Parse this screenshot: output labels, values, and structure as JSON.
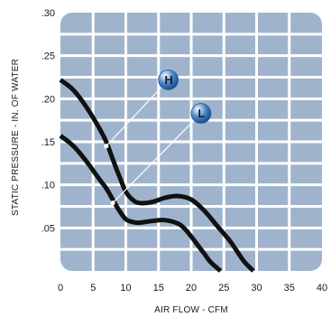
{
  "chart_data": {
    "type": "line",
    "title": "",
    "xlabel": "AIR FLOW - CFM",
    "ylabel": "STATIC PRESSURE - IN. OF WATER",
    "xlim": [
      0,
      40
    ],
    "ylim": [
      0,
      0.3
    ],
    "x_ticks": [
      0,
      5,
      10,
      15,
      20,
      25,
      30,
      35,
      40
    ],
    "x_tick_labels": [
      "0",
      "5",
      "10",
      "15",
      "20",
      "25",
      "30",
      "35",
      "40"
    ],
    "y_ticks": [
      0.05,
      0.1,
      0.15,
      0.2,
      0.25,
      0.3
    ],
    "y_tick_labels": [
      ".05",
      ".10",
      ".15",
      ".20",
      ".25",
      ".30"
    ],
    "grid": true,
    "colors": {
      "plot_background": "#9fb4cc",
      "grid": "#ffffff",
      "curve": "#111111",
      "badge": "#4f86c6"
    },
    "series": [
      {
        "name": "H",
        "x": [
          0,
          2,
          4,
          6,
          7,
          8,
          9,
          10,
          11,
          12,
          14,
          16,
          18,
          20,
          22,
          24,
          26,
          28,
          29.5
        ],
        "y": [
          0.222,
          0.21,
          0.19,
          0.165,
          0.15,
          0.13,
          0.11,
          0.092,
          0.083,
          0.079,
          0.08,
          0.085,
          0.087,
          0.083,
          0.07,
          0.052,
          0.034,
          0.012,
          0.0
        ]
      },
      {
        "name": "L",
        "x": [
          0,
          2,
          4,
          6,
          7,
          8,
          9,
          10,
          11,
          12,
          14,
          16,
          18,
          19,
          20,
          21,
          22,
          23,
          24.5
        ],
        "y": [
          0.157,
          0.145,
          0.127,
          0.106,
          0.096,
          0.083,
          0.07,
          0.06,
          0.057,
          0.056,
          0.058,
          0.059,
          0.055,
          0.049,
          0.04,
          0.03,
          0.02,
          0.01,
          0.0
        ]
      }
    ],
    "annotations": [
      {
        "label": "H",
        "series": "H",
        "point_x": 7,
        "point_y": 0.145,
        "badge_x": 16.5,
        "badge_y": 0.222
      },
      {
        "label": "L",
        "series": "L",
        "point_x": 8,
        "point_y": 0.079,
        "badge_x": 21.5,
        "badge_y": 0.183
      }
    ]
  }
}
